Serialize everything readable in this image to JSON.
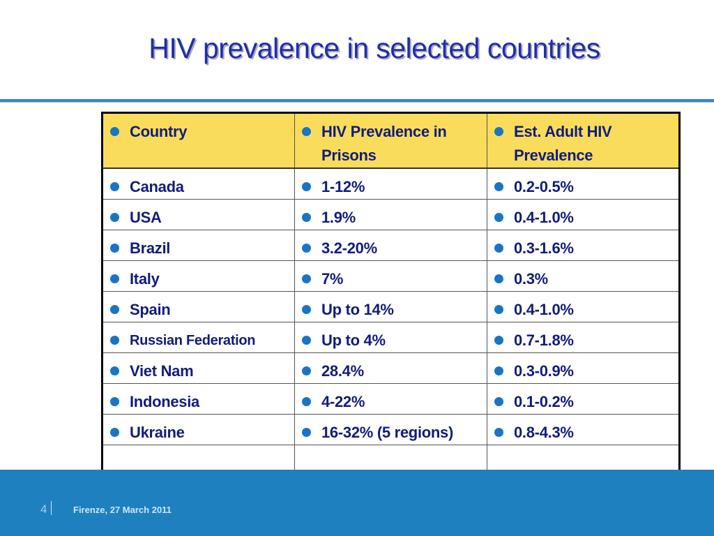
{
  "slide": {
    "title": "HIV prevalence in selected countries",
    "page_number": "4",
    "footer_text": "Firenze, 27 March 2011"
  },
  "table": {
    "headers": [
      "Country",
      "HIV Prevalence in Prisons",
      "Est. Adult HIV Prevalence"
    ],
    "rows": [
      [
        "Canada",
        "1-12%",
        "0.2-0.5%"
      ],
      [
        "USA",
        "1.9%",
        "0.4-1.0%"
      ],
      [
        "Brazil",
        "3.2-20%",
        "0.3-1.6%"
      ],
      [
        "Italy",
        "7%",
        "0.3%"
      ],
      [
        "Spain",
        "Up to 14%",
        "0.4-1.0%"
      ],
      [
        "Russian Federation",
        "Up to 4%",
        "0.7-1.8%"
      ],
      [
        "Viet Nam",
        "28.4%",
        "0.3-0.9%"
      ],
      [
        "Indonesia",
        "4-22%",
        "0.1-0.2%"
      ],
      [
        "Ukraine",
        "16-32% (5 regions)",
        "0.8-4.3%"
      ]
    ]
  },
  "colors": {
    "title": "#1f2fa8",
    "header_fill": "#f9dc5c",
    "cell_text": "#111c7a",
    "bullet": "#1a74c4",
    "footer_band": "#1f80c0",
    "rule": "#3a86be"
  },
  "icons": {
    "bullet": "bullet-dot-icon"
  }
}
